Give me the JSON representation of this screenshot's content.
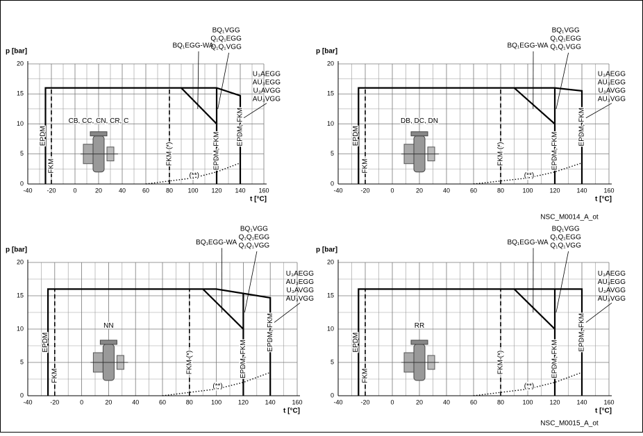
{
  "chart_data": [
    {
      "type": "line",
      "ylabel": "p [bar]",
      "xlabel": "t [°C]",
      "xlim": [
        -40,
        160
      ],
      "ylim": [
        0,
        20
      ],
      "xticks": [
        -40,
        -20,
        0,
        20,
        40,
        60,
        80,
        100,
        120,
        140,
        160
      ],
      "yticks": [
        0,
        5,
        10,
        15,
        20
      ],
      "grid": true,
      "minor_xgrid": [
        -30,
        -10,
        10,
        30,
        50,
        70,
        90,
        110,
        130,
        150
      ],
      "minor_ygrid": [
        2.5,
        7.5,
        12.5,
        17.5
      ],
      "series": [
        {
          "color": "#000",
          "style": "solid",
          "x": [
            -25,
            -25,
            120,
            140,
            140
          ],
          "values": [
            0,
            16,
            16,
            14.7,
            0
          ]
        },
        {
          "color": "#000",
          "style": "solid",
          "x": [
            90,
            120,
            120
          ],
          "values": [
            16,
            10,
            0
          ]
        },
        {
          "color": "#000",
          "style": "solid",
          "x": [
            120,
            120
          ],
          "values": [
            10,
            16
          ]
        },
        {
          "color": "#000",
          "style": "dashed",
          "x": [
            -20,
            -20
          ],
          "values": [
            0,
            16
          ]
        },
        {
          "color": "#000",
          "style": "dashed",
          "x": [
            80,
            80
          ],
          "values": [
            0,
            16
          ]
        },
        {
          "color": "#000",
          "style": "dotted",
          "x": [
            60,
            80,
            100,
            120,
            140
          ],
          "values": [
            0,
            0.5,
            1,
            2,
            3.5
          ]
        }
      ],
      "annotations": [
        "EPDM",
        "FKM",
        "FKM (*)",
        "EPDM, FKM",
        "EPDM, FKM",
        "(**)"
      ],
      "pump_label": "CB, CC, CN, CR, C",
      "callout_wa": "BQ₁EGG-WA",
      "callout_vgg": [
        "BQ₁VGG",
        "Q₁Q₁EGG",
        "Q₁Q₁VGG"
      ],
      "callout_u3": [
        "U₃AEGG",
        "AU₃EGG",
        "U₃AVGG",
        "AU₃VGG"
      ]
    },
    {
      "type": "line",
      "ylabel": "p [bar]",
      "xlabel": "t [°C]",
      "xlim": [
        -40,
        160
      ],
      "ylim": [
        0,
        20
      ],
      "xticks": [
        -40,
        -20,
        0,
        20,
        40,
        60,
        80,
        100,
        120,
        140,
        160
      ],
      "yticks": [
        0,
        5,
        10,
        15,
        20
      ],
      "grid": true,
      "minor_xgrid": [
        -30,
        -10,
        10,
        30,
        50,
        70,
        90,
        110,
        130,
        150
      ],
      "minor_ygrid": [
        2.5,
        7.5,
        12.5,
        17.5
      ],
      "series": [
        {
          "color": "#000",
          "style": "solid",
          "x": [
            -25,
            -25,
            120,
            140,
            140
          ],
          "values": [
            0,
            16,
            16,
            15.5,
            0
          ]
        },
        {
          "color": "#000",
          "style": "solid",
          "x": [
            90,
            120,
            120
          ],
          "values": [
            16,
            10,
            0
          ]
        },
        {
          "color": "#000",
          "style": "solid",
          "x": [
            120,
            120
          ],
          "values": [
            10,
            16
          ]
        },
        {
          "color": "#000",
          "style": "dashed",
          "x": [
            -20,
            -20
          ],
          "values": [
            0,
            16
          ]
        },
        {
          "color": "#000",
          "style": "dashed",
          "x": [
            80,
            80
          ],
          "values": [
            0,
            16
          ]
        },
        {
          "color": "#000",
          "style": "dotted",
          "x": [
            60,
            80,
            100,
            120,
            140
          ],
          "values": [
            0,
            0.5,
            1,
            2,
            3.5
          ]
        }
      ],
      "annotations": [
        "EPDM",
        "FKM",
        "FKM (*)",
        "EPDM, FKM",
        "EPDM, FKM",
        "(**)"
      ],
      "pump_label": "DB, DC, DN",
      "callout_wa": "BQ₁EGG-WA",
      "callout_vgg": [
        "BQ₁VGG",
        "Q₁Q₁EGG",
        "Q₁Q₁VGG"
      ],
      "callout_u3": [
        "U₃AEGG",
        "AU₃EGG",
        "U₃AVGG",
        "AU₃VGG"
      ]
    },
    {
      "type": "line",
      "ylabel": "p [bar]",
      "xlabel": "t [°C]",
      "xlim": [
        -40,
        160
      ],
      "ylim": [
        0,
        20
      ],
      "xticks": [
        -40,
        -20,
        0,
        20,
        40,
        60,
        80,
        100,
        120,
        140,
        160
      ],
      "yticks": [
        0,
        5,
        10,
        15,
        20
      ],
      "grid": true,
      "minor_xgrid": [
        -30,
        -10,
        10,
        30,
        50,
        70,
        90,
        110,
        130,
        150
      ],
      "minor_ygrid": [
        2.5,
        7.5,
        12.5,
        17.5
      ],
      "series": [
        {
          "color": "#000",
          "style": "solid",
          "x": [
            -25,
            -25,
            100,
            140,
            140
          ],
          "values": [
            0,
            16,
            16,
            14.7,
            0
          ]
        },
        {
          "color": "#000",
          "style": "solid",
          "x": [
            90,
            120,
            120
          ],
          "values": [
            16,
            10,
            0
          ]
        },
        {
          "color": "#000",
          "style": "solid",
          "x": [
            120,
            120
          ],
          "values": [
            10,
            15.3
          ]
        },
        {
          "color": "#000",
          "style": "dashed",
          "x": [
            -20,
            -20
          ],
          "values": [
            0,
            16
          ]
        },
        {
          "color": "#000",
          "style": "dashed",
          "x": [
            80,
            80
          ],
          "values": [
            0,
            16
          ]
        },
        {
          "color": "#000",
          "style": "dotted",
          "x": [
            60,
            80,
            100,
            120,
            140
          ],
          "values": [
            0,
            0.5,
            1,
            2,
            3.5
          ]
        }
      ],
      "annotations": [
        "EPDM",
        "FKM",
        "FKM (*)",
        "EPDM, FKM",
        "EPDM, FKM",
        "(**)"
      ],
      "pump_label": "NN",
      "callout_wa": "BQ₁EGG-WA",
      "callout_vgg": [
        "BQ₁VGG",
        "Q₁Q₁EGG",
        "Q₁Q₁VGG"
      ],
      "callout_u3": [
        "U₃AEGG",
        "AU₃EGG",
        "U₃AVGG",
        "AU₃VGG"
      ]
    },
    {
      "type": "line",
      "ylabel": "p [bar]",
      "xlabel": "t [°C]",
      "xlim": [
        -40,
        160
      ],
      "ylim": [
        0,
        20
      ],
      "xticks": [
        -40,
        -20,
        0,
        20,
        40,
        60,
        80,
        100,
        120,
        140,
        160
      ],
      "yticks": [
        0,
        5,
        10,
        15,
        20
      ],
      "grid": true,
      "minor_xgrid": [
        -30,
        -10,
        10,
        30,
        50,
        70,
        90,
        110,
        130,
        150
      ],
      "minor_ygrid": [
        2.5,
        7.5,
        12.5,
        17.5
      ],
      "series": [
        {
          "color": "#000",
          "style": "solid",
          "x": [
            -25,
            -25,
            140,
            140
          ],
          "values": [
            0,
            16,
            16,
            0
          ]
        },
        {
          "color": "#000",
          "style": "solid",
          "x": [
            90,
            120,
            120
          ],
          "values": [
            16,
            10,
            0
          ]
        },
        {
          "color": "#000",
          "style": "solid",
          "x": [
            120,
            120
          ],
          "values": [
            10,
            16
          ]
        },
        {
          "color": "#000",
          "style": "dashed",
          "x": [
            -20,
            -20
          ],
          "values": [
            0,
            16
          ]
        },
        {
          "color": "#000",
          "style": "dashed",
          "x": [
            80,
            80
          ],
          "values": [
            0,
            16
          ]
        },
        {
          "color": "#000",
          "style": "dotted",
          "x": [
            60,
            80,
            100,
            120,
            140
          ],
          "values": [
            0,
            0.5,
            1,
            2,
            3.5
          ]
        }
      ],
      "annotations": [
        "EPDM",
        "FKM",
        "FKM (*)",
        "EPDM, FKM",
        "EPDM, FKM",
        "(**)"
      ],
      "pump_label": "RR",
      "callout_wa": "BQ₁EGG-WA",
      "callout_vgg": [
        "BQ₁VGG",
        "Q₁Q₁EGG",
        "Q₁Q₁VGG"
      ],
      "callout_u3": [
        "U₃AEGG",
        "AU₃EGG",
        "U₃AVGG",
        "AU₃VGG"
      ]
    }
  ],
  "captions": [
    "NSC_M0014_A_ot",
    "NSC_M0015_A_ot"
  ]
}
